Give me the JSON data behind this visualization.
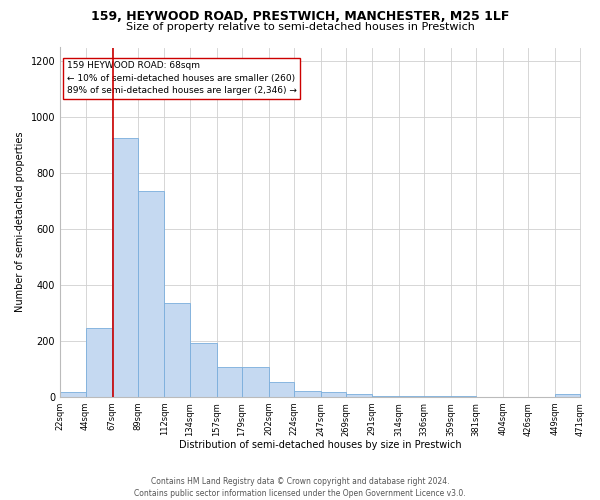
{
  "title1": "159, HEYWOOD ROAD, PRESTWICH, MANCHESTER, M25 1LF",
  "title2": "Size of property relative to semi-detached houses in Prestwich",
  "xlabel": "Distribution of semi-detached houses by size in Prestwich",
  "ylabel": "Number of semi-detached properties",
  "footer1": "Contains HM Land Registry data © Crown copyright and database right 2024.",
  "footer2": "Contains public sector information licensed under the Open Government Licence v3.0.",
  "annotation_title": "159 HEYWOOD ROAD: 68sqm",
  "annotation_line1": "← 10% of semi-detached houses are smaller (260)",
  "annotation_line2": "89% of semi-detached houses are larger (2,346) →",
  "property_size": 68,
  "bar_color": "#c5d9f1",
  "bar_edge_color": "#7aaedc",
  "marker_color": "#cc0000",
  "ylim": [
    0,
    1250
  ],
  "yticks": [
    0,
    200,
    400,
    600,
    800,
    1000,
    1200
  ],
  "bin_edges": [
    22,
    44,
    67,
    89,
    112,
    134,
    157,
    179,
    202,
    224,
    247,
    269,
    291,
    314,
    336,
    359,
    381,
    404,
    426,
    449,
    471
  ],
  "bar_heights": [
    18,
    248,
    928,
    735,
    335,
    194,
    108,
    108,
    55,
    20,
    18,
    10,
    5,
    5,
    2,
    2,
    0,
    0,
    0,
    10
  ],
  "title1_fontsize": 9,
  "title2_fontsize": 8,
  "ylabel_fontsize": 7,
  "xlabel_fontsize": 7,
  "tick_fontsize": 6,
  "footer_fontsize": 5.5,
  "annotation_fontsize": 6.5
}
